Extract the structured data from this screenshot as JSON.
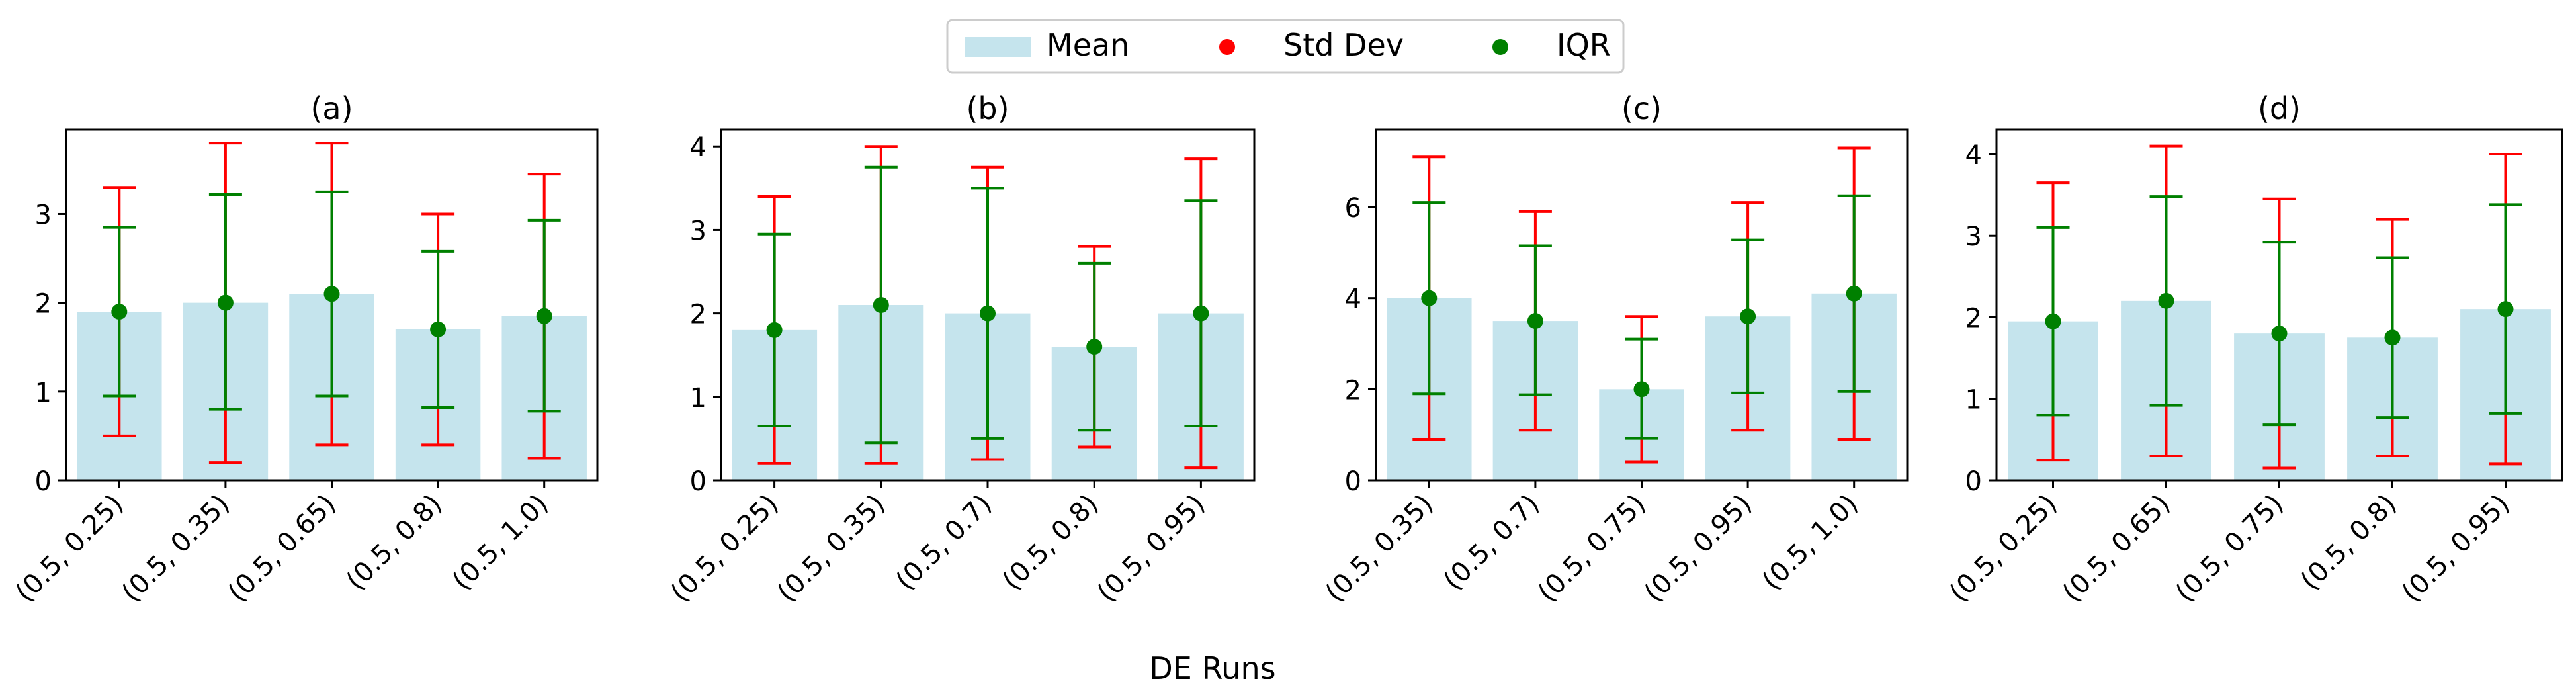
{
  "figure": {
    "xlabel": "DE Runs",
    "legend": {
      "placement": "top-center",
      "mean_label": "Mean",
      "std_label": "Std Dev",
      "iqr_label": "IQR"
    },
    "colors": {
      "bar": "#add8e6",
      "std": "#ff0000",
      "iqr": "#008000",
      "axis": "#000000"
    }
  },
  "chart_data": [
    {
      "type": "bar",
      "title": "(a)",
      "xlabel": "",
      "ylabel": "",
      "ylim": [
        0,
        3.95
      ],
      "yticks": [
        0,
        1,
        2,
        3
      ],
      "categories": [
        "(0.5, 0.25)",
        "(0.5, 0.35)",
        "(0.5, 0.65)",
        "(0.5, 0.8)",
        "(0.5, 1.0)"
      ],
      "series": [
        {
          "name": "Mean",
          "values": [
            1.9,
            2.0,
            2.1,
            1.7,
            1.85
          ]
        },
        {
          "name": "Std Dev",
          "low": [
            0.5,
            0.2,
            0.4,
            0.4,
            0.25
          ],
          "high": [
            3.3,
            3.8,
            3.8,
            3.0,
            3.45
          ]
        },
        {
          "name": "IQR",
          "center": [
            1.9,
            2.0,
            2.1,
            1.7,
            1.85
          ],
          "low": [
            0.95,
            0.8,
            0.95,
            0.82,
            0.78
          ],
          "high": [
            2.85,
            3.22,
            3.25,
            2.58,
            2.93
          ]
        }
      ]
    },
    {
      "type": "bar",
      "title": "(b)",
      "xlabel": "",
      "ylabel": "",
      "ylim": [
        0,
        4.2
      ],
      "yticks": [
        0,
        1,
        2,
        3,
        4
      ],
      "categories": [
        "(0.5, 0.25)",
        "(0.5, 0.35)",
        "(0.5, 0.7)",
        "(0.5, 0.8)",
        "(0.5, 0.95)"
      ],
      "series": [
        {
          "name": "Mean",
          "values": [
            1.8,
            2.1,
            2.0,
            1.6,
            2.0
          ]
        },
        {
          "name": "Std Dev",
          "low": [
            0.2,
            0.2,
            0.25,
            0.4,
            0.15
          ],
          "high": [
            3.4,
            4.0,
            3.75,
            2.8,
            3.85
          ]
        },
        {
          "name": "IQR",
          "center": [
            1.8,
            2.1,
            2.0,
            1.6,
            2.0
          ],
          "low": [
            0.65,
            0.45,
            0.5,
            0.6,
            0.65
          ],
          "high": [
            2.95,
            3.75,
            3.5,
            2.6,
            3.35
          ]
        }
      ]
    },
    {
      "type": "bar",
      "title": "(c)",
      "xlabel": "",
      "ylabel": "",
      "ylim": [
        0,
        7.7
      ],
      "yticks": [
        0,
        2,
        4,
        6
      ],
      "categories": [
        "(0.5, 0.35)",
        "(0.5, 0.7)",
        "(0.5, 0.75)",
        "(0.5, 0.95)",
        "(0.5, 1.0)"
      ],
      "series": [
        {
          "name": "Mean",
          "values": [
            4.0,
            3.5,
            2.0,
            3.6,
            4.1
          ]
        },
        {
          "name": "Std Dev",
          "low": [
            0.9,
            1.1,
            0.4,
            1.1,
            0.9
          ],
          "high": [
            7.1,
            5.9,
            3.6,
            6.1,
            7.3
          ]
        },
        {
          "name": "IQR",
          "center": [
            4.0,
            3.5,
            2.0,
            3.6,
            4.1
          ],
          "low": [
            1.9,
            1.88,
            0.92,
            1.92,
            1.95
          ],
          "high": [
            6.1,
            5.15,
            3.1,
            5.28,
            6.25
          ]
        }
      ]
    },
    {
      "type": "bar",
      "title": "(d)",
      "xlabel": "",
      "ylabel": "",
      "ylim": [
        0,
        4.3
      ],
      "yticks": [
        0,
        1,
        2,
        3,
        4
      ],
      "categories": [
        "(0.5, 0.25)",
        "(0.5, 0.65)",
        "(0.5, 0.75)",
        "(0.5, 0.8)",
        "(0.5, 0.95)"
      ],
      "series": [
        {
          "name": "Mean",
          "values": [
            1.95,
            2.2,
            1.8,
            1.75,
            2.1
          ]
        },
        {
          "name": "Std Dev",
          "low": [
            0.25,
            0.3,
            0.15,
            0.3,
            0.2
          ],
          "high": [
            3.65,
            4.1,
            3.45,
            3.2,
            4.0
          ]
        },
        {
          "name": "IQR",
          "center": [
            1.95,
            2.2,
            1.8,
            1.75,
            2.1
          ],
          "low": [
            0.8,
            0.92,
            0.68,
            0.77,
            0.82
          ],
          "high": [
            3.1,
            3.48,
            2.92,
            2.73,
            3.38
          ]
        }
      ]
    }
  ]
}
